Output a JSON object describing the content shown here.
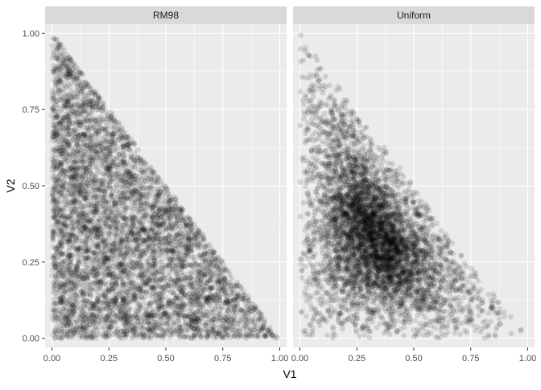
{
  "chart_data": {
    "type": "scatter",
    "facets": [
      {
        "name": "RM98",
        "sampling": "uniform-simplex",
        "n_points": 5200,
        "x_range": [
          0,
          1
        ],
        "y_range": [
          0,
          1
        ],
        "constraint": "V1 + V2 <= 1"
      },
      {
        "name": "Uniform",
        "sampling": "concentrated-near-(0.33,0.33)",
        "n_points": 5200,
        "x_range": [
          0,
          1
        ],
        "y_range": [
          0,
          1
        ],
        "constraint": "V1 + V2 <= 1"
      }
    ],
    "xlabel": "V1",
    "ylabel": "V2",
    "xlim": [
      -0.03,
      1.03
    ],
    "ylim": [
      -0.03,
      1.03
    ],
    "x_ticks": [
      0.0,
      0.25,
      0.5,
      0.75,
      1.0
    ],
    "y_ticks": [
      0.0,
      0.25,
      0.5,
      0.75,
      1.0
    ],
    "x_tick_labels": [
      "0.00",
      "0.25",
      "0.50",
      "0.75",
      "1.00"
    ],
    "y_tick_labels": [
      "0.00",
      "0.25",
      "0.50",
      "0.75",
      "1.00"
    ],
    "point_color": "#000000",
    "point_alpha": 0.12,
    "panel_background": "#ebebeb",
    "grid_color": "#ffffff",
    "strip_background": "#d9d9d9",
    "grid": true,
    "legend": "none"
  }
}
